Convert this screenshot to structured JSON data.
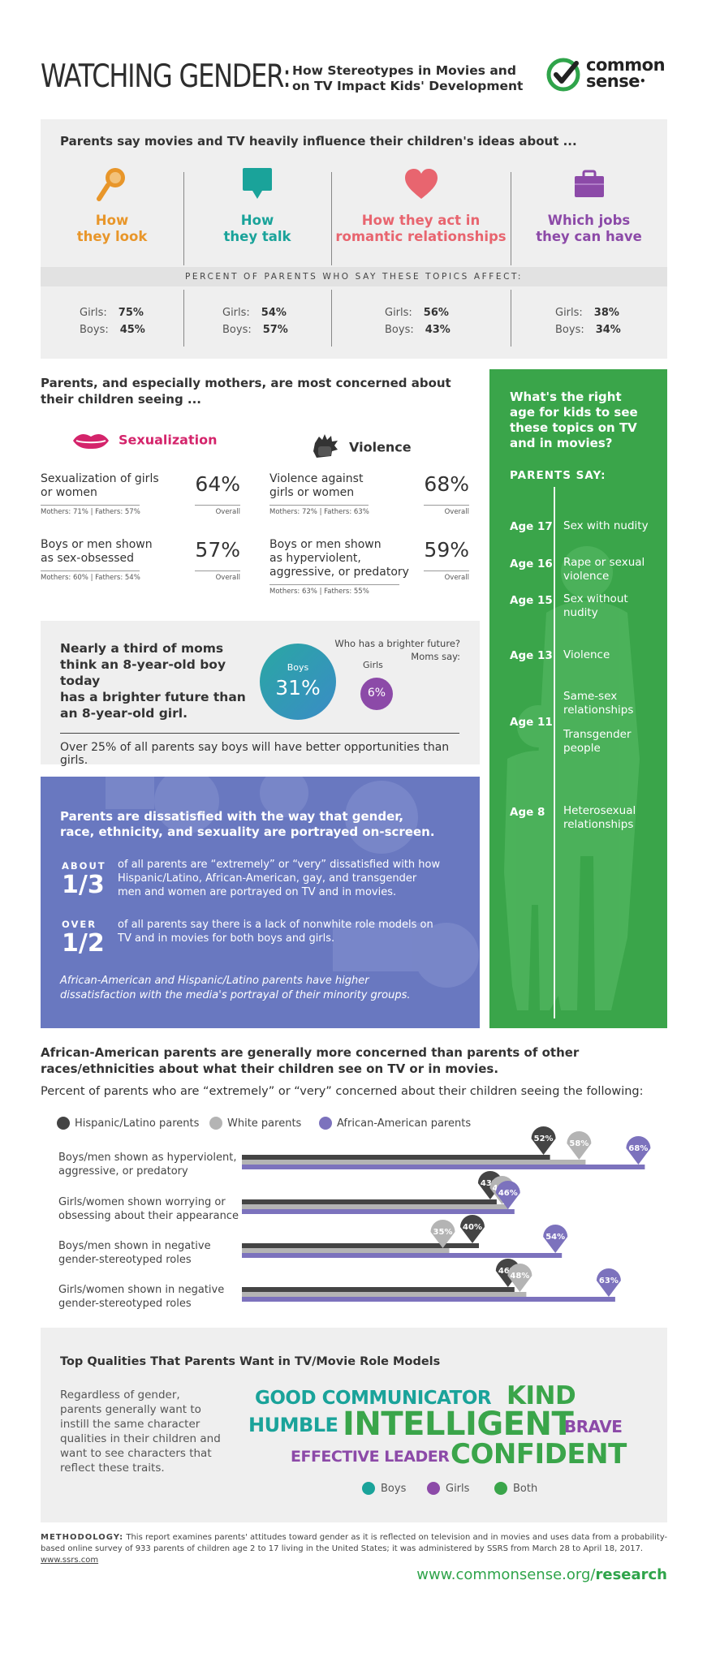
{
  "header": {
    "title": "WATCHING GENDER:",
    "subtitle_line1": "How Stereotypes in Movies and",
    "subtitle_line2": "on TV Impact Kids' Development",
    "logo_line1": "common",
    "logo_line2": "sense",
    "logo_dot": "•"
  },
  "influence": {
    "title": "Parents say movies and TV heavily influence their children's ideas about ...",
    "band": "PERCENT OF PARENTS WHO SAY THESE TOPICS AFFECT:",
    "topics": [
      {
        "l1": "How",
        "l2": "they look",
        "color": "#e8962a",
        "icon": "mirror-icon",
        "girls_label": "Girls:",
        "girls": "75%",
        "boys_label": "Boys:",
        "boys": "45%"
      },
      {
        "l1": "How",
        "l2": "they talk",
        "color": "#1aa39a",
        "icon": "speech-bubble-icon",
        "girls_label": "Girls:",
        "girls": "54%",
        "boys_label": "Boys:",
        "boys": "57%"
      },
      {
        "l1": "How they act in",
        "l2": "romantic relationships",
        "color": "#e8656f",
        "icon": "heart-icon",
        "girls_label": "Girls:",
        "girls": "56%",
        "boys_label": "Boys:",
        "boys": "43%"
      },
      {
        "l1": "Which jobs",
        "l2": "they can have",
        "color": "#8c4aa8",
        "icon": "briefcase-icon",
        "girls_label": "Girls:",
        "girls": "38%",
        "boys_label": "Boys:",
        "boys": "34%"
      }
    ]
  },
  "concerns": {
    "title": "Parents, and especially mothers, are most concerned about their children seeing ...",
    "sex_label": "Sexualization",
    "violence_label": "Violence",
    "overall": "Overall",
    "items": [
      {
        "text1": "Sexualization of girls",
        "text2": "or women",
        "text3": "",
        "pct": "64%",
        "sub": "Mothers: 71% | Fathers: 57%"
      },
      {
        "text1": "Boys or men shown",
        "text2": "as sex-obsessed",
        "text3": "",
        "pct": "57%",
        "sub": "Mothers: 60% | Fathers: 54%"
      },
      {
        "text1": "Violence against",
        "text2": "girls or women",
        "text3": "",
        "pct": "68%",
        "sub": "Mothers: 72% | Fathers: 63%"
      },
      {
        "text1": "Boys or men shown",
        "text2": "as hyperviolent,",
        "text3": "aggressive, or predatory",
        "pct": "59%",
        "sub": "Mothers: 63% | Fathers: 55%"
      }
    ]
  },
  "age_panel": {
    "title1": "What's the right",
    "title2": "age for kids to see",
    "title3": "these topics on TV",
    "title4": "and in movies?",
    "parents_say": "PARENTS SAY:",
    "ages": [
      {
        "age": "Age 17",
        "t1": "Sex with nudity",
        "t2": ""
      },
      {
        "age": "Age 16",
        "t1": "Rape or sexual",
        "t2": "violence"
      },
      {
        "age": "Age 15",
        "t1": "Sex without",
        "t2": "nudity"
      },
      {
        "age": "Age 13",
        "t1": "Violence",
        "t2": ""
      },
      {
        "age": "Age 11",
        "t1": "Same-sex",
        "t2": "relationships",
        "t3": "Transgender",
        "t4": "people"
      },
      {
        "age": "Age 8",
        "t1": "Heterosexual",
        "t2": "relationships"
      }
    ]
  },
  "future": {
    "text1": "Nearly a third of moms",
    "text2": "think an 8-year-old boy today",
    "text3": "has a brighter future than",
    "text4": "an 8-year-old girl.",
    "q1": "Who has a brighter future?",
    "q2": "Moms say:",
    "boys_label": "Boys",
    "boys_value": "31%",
    "girls_label": "Girls",
    "girls_value": "6%",
    "footer": "Over 25% of all parents say boys will have better opportunities than girls."
  },
  "dissatisfied": {
    "title": "Parents are dissatisfied with the way that gender, race, ethnicity, and sexuality are portrayed on-screen.",
    "about_label": "ABOUT",
    "about_value": "1/3",
    "about_text": "of all parents are “extremely” or “very” dissatisfied with how Hispanic/Latino, African-American, gay, and transgender men and women are portrayed on TV and in movies.",
    "over_label": "OVER",
    "over_value": "1/2",
    "over_text": "of all parents say there is a lack of nonwhite role models on TV and in movies for both boys and girls.",
    "italic": "African-American and Hispanic/Latino parents have higher dissatisfaction with the media's portrayal of their minority groups."
  },
  "race": {
    "title": "African-American parents are generally more concerned than parents of other races/ethnicities about what their children see on TV or in movies.",
    "subtitle": "Percent of parents who are “extremely” or “very” concerned about their children seeing the following:",
    "legend": [
      "Hispanic/Latino parents",
      "White parents",
      "African-American parents"
    ],
    "colors": [
      "#444444",
      "#b4b4b4",
      "#7c72bd"
    ]
  },
  "chart_data": {
    "type": "bar",
    "categories": [
      "Boys/men shown as hyperviolent, aggressive, or predatory",
      "Girls/women shown worrying or obsessing about their appearance",
      "Boys/men shown in negative gender-stereotyped roles",
      "Girls/women shown in negative gender-stereotyped roles"
    ],
    "category_lines": [
      [
        "Boys/men shown as hyperviolent,",
        "aggressive, or predatory"
      ],
      [
        "Girls/women shown worrying or",
        "obsessing about their appearance"
      ],
      [
        "Boys/men shown in negative",
        "gender-stereotyped roles"
      ],
      [
        "Girls/women shown in negative",
        "gender-stereotyped roles"
      ]
    ],
    "series": [
      {
        "name": "Hispanic/Latino parents",
        "values": [
          52,
          43,
          40,
          46
        ]
      },
      {
        "name": "White parents",
        "values": [
          58,
          45,
          35,
          48
        ]
      },
      {
        "name": "African-American parents",
        "values": [
          68,
          46,
          54,
          63
        ]
      }
    ]
  },
  "qualities": {
    "title": "Top Qualities That Parents Want in TV/Movie Role Models",
    "text": "Regardless of gender, parents generally want to instill the same character qualities in their children and want to see characters that reflect these traits.",
    "words": {
      "good_communicator": "GOOD COMMUNICATOR",
      "kind": "KIND",
      "humble": "HUMBLE",
      "intelligent": "INTELLIGENT",
      "brave": "BRAVE",
      "effective_leader": "EFFECTIVE LEADER",
      "confident": "CONFIDENT"
    },
    "legend": [
      "Boys",
      "Girls",
      "Both"
    ],
    "colors": {
      "boys": "#1aa39a",
      "girls": "#8c4aa8",
      "both": "#3aa54a"
    }
  },
  "methodology": {
    "label": "METHODOLOGY:",
    "text": "This report examines parents' attitudes toward gender as it is reflected on television and in movies and uses data from a probability-based online survey of 933 parents of children age 2 to 17 living in the United States; it was administered by SSRS from March 28 to April 18, 2017.",
    "link": "www.ssrs.com"
  },
  "footer": {
    "url_main": "www.commonsense.org/",
    "url_bold": "research"
  }
}
